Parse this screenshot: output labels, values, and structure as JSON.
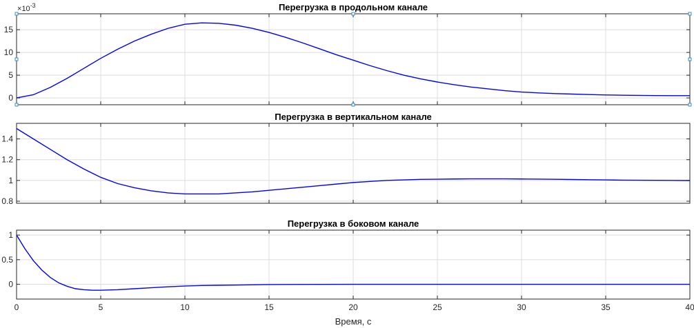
{
  "chart_data": [
    {
      "type": "line",
      "title": "Перегрузка в продольном канале",
      "xlabel": "",
      "ylabel": "",
      "xlim": [
        0,
        40
      ],
      "ylim": [
        -1.5,
        18.5
      ],
      "xticks": [
        0,
        5,
        10,
        15,
        20,
        25,
        30,
        35,
        40
      ],
      "yticks": [
        0,
        5,
        10,
        15
      ],
      "ytick_labels": [
        "0",
        "5",
        "10",
        "15"
      ],
      "y_exponent_label": "10",
      "y_exponent_power": "-3",
      "grid": true,
      "show_xtick_labels": false,
      "selected_axes": true,
      "series": [
        {
          "color": "#0000ff",
          "x": [
            0,
            1,
            2,
            3,
            4,
            5,
            6,
            7,
            8,
            9,
            10,
            11,
            12,
            13,
            14,
            15,
            16,
            17,
            18,
            19,
            20,
            21,
            22,
            23,
            24,
            25,
            26,
            27,
            28,
            29,
            30,
            31,
            32,
            33,
            34,
            35,
            36,
            37,
            38,
            39,
            40
          ],
          "y": [
            0,
            0.7,
            2.3,
            4.3,
            6.5,
            8.7,
            10.7,
            12.5,
            14.0,
            15.3,
            16.2,
            16.5,
            16.4,
            16.0,
            15.3,
            14.4,
            13.3,
            12.1,
            10.8,
            9.5,
            8.3,
            7.1,
            6.0,
            5.0,
            4.2,
            3.5,
            2.9,
            2.4,
            2.0,
            1.6,
            1.3,
            1.1,
            0.95,
            0.85,
            0.75,
            0.65,
            0.6,
            0.55,
            0.52,
            0.5,
            0.5
          ]
        }
      ]
    },
    {
      "type": "line",
      "title": "Перегрузка в вертикальном канале",
      "xlabel": "",
      "ylabel": "",
      "xlim": [
        0,
        40
      ],
      "ylim": [
        0.78,
        1.55
      ],
      "xticks": [
        0,
        5,
        10,
        15,
        20,
        25,
        30,
        35,
        40
      ],
      "yticks": [
        0.8,
        1,
        1.2,
        1.4
      ],
      "ytick_labels": [
        "0.8",
        "1",
        "1.2",
        "1.4"
      ],
      "grid": true,
      "show_xtick_labels": false,
      "series": [
        {
          "color": "#0000ff",
          "x": [
            0,
            1,
            2,
            3,
            4,
            5,
            6,
            7,
            8,
            9,
            10,
            11,
            12,
            13,
            14,
            15,
            16,
            17,
            18,
            19,
            20,
            21,
            22,
            23,
            24,
            25,
            26,
            27,
            28,
            29,
            30,
            31,
            32,
            33,
            34,
            35,
            36,
            37,
            38,
            39,
            40
          ],
          "y": [
            1.5,
            1.4,
            1.3,
            1.2,
            1.11,
            1.03,
            0.97,
            0.93,
            0.9,
            0.88,
            0.87,
            0.87,
            0.87,
            0.88,
            0.89,
            0.905,
            0.92,
            0.935,
            0.95,
            0.965,
            0.98,
            0.99,
            1.0,
            1.005,
            1.01,
            1.012,
            1.014,
            1.015,
            1.015,
            1.015,
            1.014,
            1.013,
            1.011,
            1.009,
            1.007,
            1.005,
            1.003,
            1.002,
            1.001,
            1.0,
            0.999
          ]
        }
      ]
    },
    {
      "type": "line",
      "title": "Перегрузка в боковом канале",
      "xlabel": "Время, с",
      "ylabel": "",
      "xlim": [
        0,
        40
      ],
      "ylim": [
        -0.3,
        1.1
      ],
      "xticks": [
        0,
        5,
        10,
        15,
        20,
        25,
        30,
        35,
        40
      ],
      "xtick_labels": [
        "0",
        "5",
        "10",
        "15",
        "20",
        "25",
        "30",
        "35",
        "40"
      ],
      "yticks": [
        0,
        0.5,
        1
      ],
      "ytick_labels": [
        "0",
        "0.5",
        "1"
      ],
      "grid": true,
      "show_xtick_labels": true,
      "series": [
        {
          "color": "#0000ff",
          "x": [
            0,
            0.5,
            1,
            1.5,
            2,
            2.5,
            3,
            3.5,
            4,
            4.5,
            5,
            6,
            7,
            8,
            9,
            10,
            11,
            12,
            13,
            14,
            15,
            16,
            18,
            20,
            25,
            30,
            35,
            40
          ],
          "y": [
            1.0,
            0.72,
            0.48,
            0.29,
            0.14,
            0.03,
            -0.04,
            -0.09,
            -0.11,
            -0.12,
            -0.12,
            -0.11,
            -0.09,
            -0.07,
            -0.05,
            -0.035,
            -0.025,
            -0.02,
            -0.015,
            -0.01,
            -0.005,
            -0.003,
            -0.001,
            0,
            0,
            0,
            0,
            0
          ]
        }
      ]
    }
  ]
}
